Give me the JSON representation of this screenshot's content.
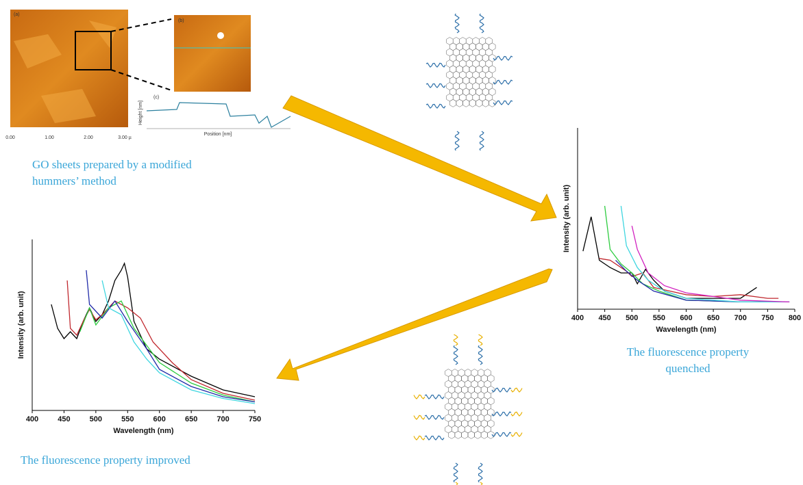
{
  "afm": {
    "panel_a": "(a)",
    "panel_b": "(b)",
    "panel_c": "(c)",
    "x_labels": [
      "0.00",
      "1.00",
      "2.00",
      "3.00 µ"
    ],
    "profile_x_label": "Position [nm]",
    "profile_y_label": "Height [nm]"
  },
  "captions": {
    "go_sheets": [
      "GO sheets prepared by a modified",
      "hummers’ method"
    ],
    "quenched": [
      "The fluorescence property",
      "quenched"
    ],
    "improved": "The fluorescence property improved"
  },
  "chart_data": [
    {
      "type": "line",
      "x_label": "Wavelength (nm)",
      "y_label": "Intensity (arb. unit)",
      "xlim": [
        400,
        800
      ],
      "ylim": [
        0,
        100
      ],
      "xticks": [
        400,
        450,
        500,
        550,
        600,
        650,
        700,
        750,
        800
      ],
      "series": [
        {
          "color": "#000000",
          "x": [
            410,
            425,
            440,
            460,
            480,
            500,
            510,
            525,
            540,
            560,
            600,
            650,
            700,
            730
          ],
          "values": [
            32,
            51,
            27,
            23,
            20,
            20,
            14,
            22,
            16,
            10,
            6,
            6,
            6,
            12
          ]
        },
        {
          "color": "#c0272d",
          "x": [
            440,
            460,
            480,
            490,
            500,
            520,
            540,
            600,
            650,
            700,
            750,
            770
          ],
          "values": [
            28,
            27,
            23,
            21,
            18,
            20,
            12,
            8,
            7,
            8,
            6,
            6
          ]
        },
        {
          "color": "#2ecc40",
          "x": [
            450,
            460,
            480,
            500,
            520,
            550,
            600,
            700,
            790
          ],
          "values": [
            57,
            33,
            25,
            20,
            14,
            10,
            5,
            4,
            4
          ]
        },
        {
          "color": "#1f2aa8",
          "x": [
            470,
            490,
            510,
            540,
            600,
            700,
            790
          ],
          "values": [
            27,
            21,
            16,
            10,
            5,
            4,
            4
          ]
        },
        {
          "color": "#3fd6e0",
          "x": [
            480,
            490,
            510,
            530,
            560,
            600,
            700,
            790
          ],
          "values": [
            57,
            35,
            23,
            16,
            10,
            6,
            4,
            4
          ]
        },
        {
          "color": "#d11fbf",
          "x": [
            500,
            510,
            530,
            560,
            600,
            650,
            700,
            790
          ],
          "values": [
            46,
            33,
            20,
            13,
            9,
            7,
            5,
            4
          ]
        }
      ]
    },
    {
      "type": "line",
      "x_label": "Wavelength (nm)",
      "y_label": "Intensity (arb. unit)",
      "xlim": [
        400,
        750
      ],
      "ylim": [
        0,
        100
      ],
      "xticks": [
        400,
        450,
        500,
        550,
        600,
        650,
        700,
        750
      ],
      "series": [
        {
          "color": "#000000",
          "x": [
            430,
            440,
            450,
            460,
            470,
            480,
            490,
            500,
            510,
            520,
            530,
            540,
            545,
            550,
            560,
            580,
            600,
            650,
            700,
            750
          ],
          "values": [
            62,
            48,
            42,
            46,
            42,
            52,
            60,
            52,
            56,
            64,
            76,
            82,
            86,
            78,
            52,
            36,
            30,
            20,
            12,
            8
          ]
        },
        {
          "color": "#c0272d",
          "x": [
            455,
            460,
            470,
            480,
            490,
            500,
            510,
            530,
            550,
            570,
            590,
            620,
            650,
            700,
            750
          ],
          "values": [
            76,
            48,
            44,
            52,
            59,
            53,
            56,
            64,
            60,
            54,
            40,
            28,
            18,
            10,
            6
          ]
        },
        {
          "color": "#2ecc40",
          "x": [
            475,
            490,
            500,
            520,
            540,
            560,
            600,
            650,
            700,
            750
          ],
          "values": [
            46,
            60,
            50,
            60,
            64,
            48,
            28,
            16,
            9,
            5
          ]
        },
        {
          "color": "#1f2aa8",
          "x": [
            485,
            490,
            500,
            510,
            530,
            550,
            580,
            600,
            650,
            700,
            750
          ],
          "values": [
            82,
            62,
            58,
            54,
            64,
            52,
            36,
            24,
            14,
            8,
            5
          ]
        },
        {
          "color": "#3fd6e0",
          "x": [
            510,
            520,
            540,
            560,
            580,
            600,
            650,
            700,
            750
          ],
          "values": [
            76,
            60,
            56,
            40,
            30,
            22,
            12,
            7,
            4
          ]
        }
      ]
    }
  ]
}
